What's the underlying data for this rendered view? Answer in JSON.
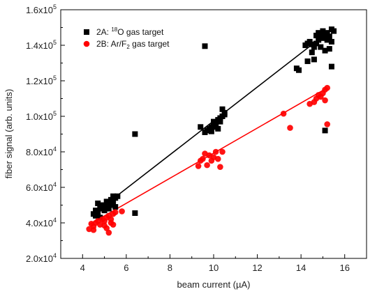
{
  "chart_data": {
    "type": "scatter",
    "title": "",
    "xlabel": "beam current (µA)",
    "ylabel": "fiber signal (arb. units)",
    "xlim": [
      3,
      17
    ],
    "ylim": [
      20000,
      160000
    ],
    "x_ticks": [
      4,
      6,
      8,
      10,
      12,
      14,
      16
    ],
    "y_ticks": [
      20000,
      40000,
      60000,
      80000,
      100000,
      120000,
      140000,
      160000
    ],
    "y_tick_labels": [
      {
        "mantissa": "2.0x10",
        "exp": "4"
      },
      {
        "mantissa": "4.0x10",
        "exp": "4"
      },
      {
        "mantissa": "6.0x10",
        "exp": "4"
      },
      {
        "mantissa": "8.0x10",
        "exp": "4"
      },
      {
        "mantissa": "1.0x10",
        "exp": "5"
      },
      {
        "mantissa": "1.2x10",
        "exp": "5"
      },
      {
        "mantissa": "1.4x10",
        "exp": "5"
      },
      {
        "mantissa": "1.6x10",
        "exp": "5"
      }
    ],
    "grid": false,
    "legend_position": "top-left",
    "series": [
      {
        "legend_parts": [
          "2A: ",
          "18",
          "O gas target"
        ],
        "legend_style": "sup",
        "marker": "square",
        "color": "#000000",
        "fit_line": [
          [
            4.5,
            45000
          ],
          [
            15.2,
            147000
          ]
        ],
        "points": [
          [
            4.5,
            45000
          ],
          [
            4.6,
            47000
          ],
          [
            4.7,
            46000
          ],
          [
            4.8,
            48000
          ],
          [
            4.9,
            50000
          ],
          [
            4.7,
            51000
          ],
          [
            5.0,
            49000
          ],
          [
            5.1,
            52000
          ],
          [
            5.2,
            51000
          ],
          [
            5.0,
            47000
          ],
          [
            5.3,
            53000
          ],
          [
            5.4,
            55000
          ],
          [
            5.5,
            54000
          ],
          [
            5.6,
            55000
          ],
          [
            5.3,
            50000
          ],
          [
            4.6,
            44000
          ],
          [
            4.8,
            43000
          ],
          [
            5.2,
            48000
          ],
          [
            5.4,
            52000
          ],
          [
            5.5,
            49000
          ],
          [
            6.4,
            90000
          ],
          [
            6.4,
            45500
          ],
          [
            9.4,
            94000
          ],
          [
            9.6,
            91000
          ],
          [
            9.7,
            92000
          ],
          [
            9.8,
            93000
          ],
          [
            9.9,
            94000
          ],
          [
            10.0,
            95000
          ],
          [
            10.0,
            97000
          ],
          [
            10.1,
            96000
          ],
          [
            10.2,
            98000
          ],
          [
            10.3,
            99000
          ],
          [
            10.4,
            100000
          ],
          [
            10.5,
            102000
          ],
          [
            10.4,
            104000
          ],
          [
            10.1,
            94000
          ],
          [
            9.9,
            91500
          ],
          [
            10.2,
            93000
          ],
          [
            10.5,
            101000
          ],
          [
            10.3,
            97000
          ],
          [
            9.6,
            139500
          ],
          [
            13.8,
            127000
          ],
          [
            13.9,
            126000
          ],
          [
            14.3,
            131000
          ],
          [
            14.5,
            136000
          ],
          [
            14.6,
            132000
          ],
          [
            14.2,
            140000
          ],
          [
            14.3,
            141000
          ],
          [
            14.4,
            142000
          ],
          [
            14.5,
            140500
          ],
          [
            14.6,
            139000
          ],
          [
            14.7,
            141000
          ],
          [
            14.8,
            143000
          ],
          [
            14.9,
            145000
          ],
          [
            15.0,
            144000
          ],
          [
            15.1,
            146000
          ],
          [
            15.2,
            147000
          ],
          [
            15.3,
            145000
          ],
          [
            15.4,
            149000
          ],
          [
            15.5,
            148000
          ],
          [
            15.0,
            148000
          ],
          [
            14.8,
            147000
          ],
          [
            15.2,
            143000
          ],
          [
            15.3,
            138000
          ],
          [
            15.1,
            137000
          ],
          [
            14.9,
            139000
          ],
          [
            15.4,
            142000
          ],
          [
            14.7,
            145500
          ],
          [
            15.4,
            128000
          ],
          [
            15.1,
            92000
          ]
        ]
      },
      {
        "legend_parts": [
          "2B: Ar/F",
          "2",
          " gas target"
        ],
        "legend_style": "sub",
        "marker": "circle",
        "color": "#ff0000",
        "fit_line": [
          [
            4.3,
            39000
          ],
          [
            15.2,
            116000
          ]
        ],
        "points": [
          [
            4.3,
            36500
          ],
          [
            4.4,
            39500
          ],
          [
            4.5,
            38000
          ],
          [
            4.6,
            40000
          ],
          [
            4.7,
            41000
          ],
          [
            4.8,
            39000
          ],
          [
            4.9,
            42000
          ],
          [
            5.0,
            41000
          ],
          [
            5.0,
            38500
          ],
          [
            5.1,
            43000
          ],
          [
            5.2,
            44000
          ],
          [
            5.3,
            42000
          ],
          [
            5.4,
            45000
          ],
          [
            5.5,
            46000
          ],
          [
            5.8,
            46500
          ],
          [
            5.1,
            37000
          ],
          [
            5.3,
            40000
          ],
          [
            5.2,
            34500
          ],
          [
            4.5,
            36000
          ],
          [
            5.4,
            39000
          ],
          [
            9.3,
            72000
          ],
          [
            9.4,
            75000
          ],
          [
            9.5,
            76000
          ],
          [
            9.7,
            72500
          ],
          [
            9.8,
            78000
          ],
          [
            9.9,
            75000
          ],
          [
            10.0,
            77000
          ],
          [
            10.1,
            80000
          ],
          [
            10.2,
            76000
          ],
          [
            10.3,
            71500
          ],
          [
            10.4,
            80000
          ],
          [
            9.6,
            79000
          ],
          [
            13.2,
            101500
          ],
          [
            13.5,
            93500
          ],
          [
            14.4,
            107000
          ],
          [
            14.6,
            108000
          ],
          [
            14.7,
            110000
          ],
          [
            14.8,
            112000
          ],
          [
            14.9,
            111000
          ],
          [
            15.0,
            113000
          ],
          [
            15.1,
            115000
          ],
          [
            15.2,
            116000
          ],
          [
            15.1,
            109000
          ],
          [
            15.2,
            95500
          ]
        ]
      }
    ]
  }
}
